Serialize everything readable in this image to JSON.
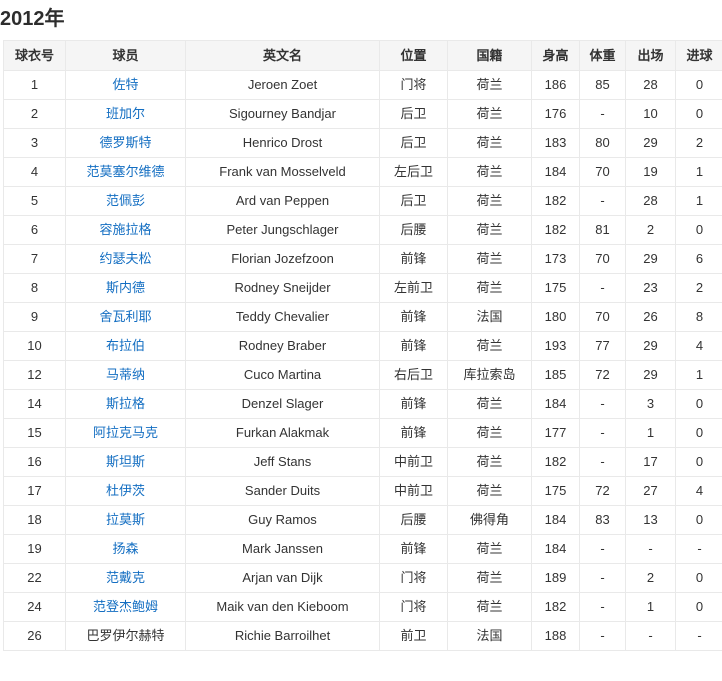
{
  "page": {
    "title": "2012年"
  },
  "colors": {
    "link_blue": "#136ec2",
    "header_bg": "#f5f5f5",
    "border": "#e9e9e9",
    "text": "#333333"
  },
  "table": {
    "headers": [
      "球衣号",
      "球员",
      "英文名",
      "位置",
      "国籍",
      "身高",
      "体重",
      "出场",
      "进球"
    ],
    "rows": [
      {
        "number": "1",
        "name": "佐特",
        "name_is_link": true,
        "en_name": "Jeroen Zoet",
        "position": "门将",
        "nationality": "荷兰",
        "height": "186",
        "weight": "85",
        "appearances": "28",
        "goals": "0"
      },
      {
        "number": "2",
        "name": "班加尔",
        "name_is_link": true,
        "en_name": "Sigourney Bandjar",
        "position": "后卫",
        "nationality": "荷兰",
        "height": "176",
        "weight": "-",
        "appearances": "10",
        "goals": "0"
      },
      {
        "number": "3",
        "name": "德罗斯特",
        "name_is_link": true,
        "en_name": "Henrico Drost",
        "position": "后卫",
        "nationality": "荷兰",
        "height": "183",
        "weight": "80",
        "appearances": "29",
        "goals": "2"
      },
      {
        "number": "4",
        "name": "范莫塞尔维德",
        "name_is_link": true,
        "en_name": "Frank van Mosselveld",
        "position": "左后卫",
        "nationality": "荷兰",
        "height": "184",
        "weight": "70",
        "appearances": "19",
        "goals": "1"
      },
      {
        "number": "5",
        "name": "范佩彭",
        "name_is_link": true,
        "en_name": "Ard van Peppen",
        "position": "后卫",
        "nationality": "荷兰",
        "height": "182",
        "weight": "-",
        "appearances": "28",
        "goals": "1"
      },
      {
        "number": "6",
        "name": "容施拉格",
        "name_is_link": true,
        "en_name": "Peter Jungschlager",
        "position": "后腰",
        "nationality": "荷兰",
        "height": "182",
        "weight": "81",
        "appearances": "2",
        "goals": "0"
      },
      {
        "number": "7",
        "name": "约瑟夫松",
        "name_is_link": true,
        "en_name": "Florian Jozefzoon",
        "position": "前锋",
        "nationality": "荷兰",
        "height": "173",
        "weight": "70",
        "appearances": "29",
        "goals": "6"
      },
      {
        "number": "8",
        "name": "斯内德",
        "name_is_link": true,
        "en_name": "Rodney Sneijder",
        "position": "左前卫",
        "nationality": "荷兰",
        "height": "175",
        "weight": "-",
        "appearances": "23",
        "goals": "2"
      },
      {
        "number": "9",
        "name": "舍瓦利耶",
        "name_is_link": true,
        "en_name": "Teddy Chevalier",
        "position": "前锋",
        "nationality": "法国",
        "height": "180",
        "weight": "70",
        "appearances": "26",
        "goals": "8"
      },
      {
        "number": "10",
        "name": "布拉伯",
        "name_is_link": true,
        "en_name": "Rodney Braber",
        "position": "前锋",
        "nationality": "荷兰",
        "height": "193",
        "weight": "77",
        "appearances": "29",
        "goals": "4"
      },
      {
        "number": "12",
        "name": "马蒂纳",
        "name_is_link": true,
        "en_name": "Cuco Martina",
        "position": "右后卫",
        "nationality": "库拉索岛",
        "height": "185",
        "weight": "72",
        "appearances": "29",
        "goals": "1"
      },
      {
        "number": "14",
        "name": "斯拉格",
        "name_is_link": true,
        "en_name": "Denzel Slager",
        "position": "前锋",
        "nationality": "荷兰",
        "height": "184",
        "weight": "-",
        "appearances": "3",
        "goals": "0"
      },
      {
        "number": "15",
        "name": "阿拉克马克",
        "name_is_link": true,
        "en_name": "Furkan Alakmak",
        "position": "前锋",
        "nationality": "荷兰",
        "height": "177",
        "weight": "-",
        "appearances": "1",
        "goals": "0"
      },
      {
        "number": "16",
        "name": "斯坦斯",
        "name_is_link": true,
        "en_name": "Jeff Stans",
        "position": "中前卫",
        "nationality": "荷兰",
        "height": "182",
        "weight": "-",
        "appearances": "17",
        "goals": "0"
      },
      {
        "number": "17",
        "name": "杜伊茨",
        "name_is_link": true,
        "en_name": "Sander Duits",
        "position": "中前卫",
        "nationality": "荷兰",
        "height": "175",
        "weight": "72",
        "appearances": "27",
        "goals": "4"
      },
      {
        "number": "18",
        "name": "拉莫斯",
        "name_is_link": true,
        "en_name": "Guy Ramos",
        "position": "后腰",
        "nationality": "佛得角",
        "height": "184",
        "weight": "83",
        "appearances": "13",
        "goals": "0"
      },
      {
        "number": "19",
        "name": "扬森",
        "name_is_link": true,
        "en_name": "Mark Janssen",
        "position": "前锋",
        "nationality": "荷兰",
        "height": "184",
        "weight": "-",
        "appearances": "-",
        "goals": "-"
      },
      {
        "number": "22",
        "name": "范戴克",
        "name_is_link": true,
        "en_name": "Arjan van Dijk",
        "position": "门将",
        "nationality": "荷兰",
        "height": "189",
        "weight": "-",
        "appearances": "2",
        "goals": "0"
      },
      {
        "number": "24",
        "name": "范登杰鲍姆",
        "name_is_link": true,
        "en_name": "Maik van den Kieboom",
        "position": "门将",
        "nationality": "荷兰",
        "height": "182",
        "weight": "-",
        "appearances": "1",
        "goals": "0"
      },
      {
        "number": "26",
        "name": "巴罗伊尔赫特",
        "name_is_link": false,
        "en_name": "Richie Barroilhet",
        "position": "前卫",
        "nationality": "法国",
        "height": "188",
        "weight": "-",
        "appearances": "-",
        "goals": "-"
      }
    ]
  }
}
